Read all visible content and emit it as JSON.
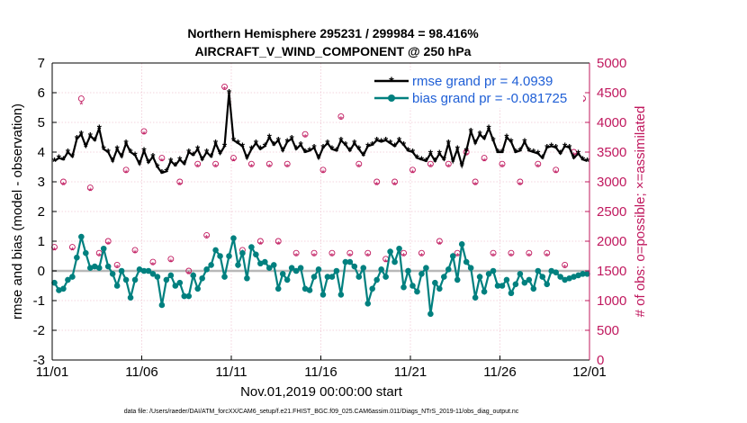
{
  "chart_data": {
    "type": "line",
    "title": "Northern Hemisphere 295231 / 299984 = 98.416%",
    "subtitle": "AIRCRAFT_V_WIND_COMPONENT @ 250 hPa",
    "xlabel": "Nov.01,2019 00:00:00 start",
    "ylabel_left": "rmse and bias (model - observation)",
    "ylabel_right": "# of obs: o=possible; ×=assimilated",
    "x_range": [
      0,
      30
    ],
    "x_tick_values": [
      0,
      5,
      10,
      15,
      20,
      25,
      30
    ],
    "x_tick_labels": [
      "11/01",
      "11/06",
      "11/11",
      "11/16",
      "11/21",
      "11/26",
      "12/01"
    ],
    "ylim_left": [
      -3,
      7
    ],
    "y_left_ticks": [
      "-3",
      "-2",
      "-1",
      "0",
      "1",
      "2",
      "3",
      "4",
      "5",
      "6",
      "7"
    ],
    "ylim_right": [
      0,
      5000
    ],
    "y_right_ticks": [
      "0",
      "500",
      "1000",
      "1500",
      "2000",
      "2500",
      "3000",
      "3500",
      "4000",
      "4500",
      "5000"
    ],
    "legend_position": "top-right",
    "footnote": "data file: /Users/raeder/DAI/ATM_forcXX/CAM6_setup/f.e21.FHIST_BGC.f09_025.CAM6assim.011/Diags_NTrS_2019-11/obs_diag_output.nc",
    "series": [
      {
        "name": "rmse grand pr = 4.0939",
        "color": "#000000",
        "x": [
          0.125,
          0.375,
          0.625,
          0.875,
          1.125,
          1.375,
          1.625,
          1.875,
          2.125,
          2.375,
          2.625,
          2.875,
          3.125,
          3.375,
          3.625,
          3.875,
          4.125,
          4.375,
          4.625,
          4.875,
          5.125,
          5.375,
          5.625,
          5.875,
          6.125,
          6.375,
          6.625,
          6.875,
          7.125,
          7.375,
          7.625,
          7.875,
          8.125,
          8.375,
          8.625,
          8.875,
          9.125,
          9.375,
          9.625,
          9.875,
          10.125,
          10.375,
          10.625,
          10.875,
          11.125,
          11.375,
          11.625,
          11.875,
          12.125,
          12.375,
          12.625,
          12.875,
          13.125,
          13.375,
          13.625,
          13.875,
          14.125,
          14.375,
          14.625,
          14.875,
          15.125,
          15.375,
          15.625,
          15.875,
          16.125,
          16.375,
          16.625,
          16.875,
          17.125,
          17.375,
          17.625,
          17.875,
          18.125,
          18.375,
          18.625,
          18.875,
          19.125,
          19.375,
          19.625,
          19.875,
          20.125,
          20.375,
          20.625,
          20.875,
          21.125,
          21.375,
          21.625,
          21.875,
          22.125,
          22.375,
          22.625,
          22.875,
          23.125,
          23.375,
          23.625,
          23.875,
          24.125,
          24.375,
          24.625,
          24.875,
          25.125,
          25.375,
          25.625,
          25.875,
          26.125,
          26.375,
          26.625,
          26.875,
          27.125,
          27.375,
          27.625,
          27.875,
          28.125,
          28.375,
          28.625,
          28.875,
          29.125,
          29.375,
          29.625,
          29.875
        ],
        "values": [
          3.7,
          3.8,
          3.75,
          4.0,
          3.85,
          4.45,
          4.6,
          4.2,
          4.55,
          4.4,
          4.8,
          4.1,
          4.0,
          3.7,
          4.1,
          3.85,
          4.3,
          4.0,
          3.9,
          3.6,
          4.05,
          3.65,
          3.85,
          3.5,
          3.3,
          3.35,
          3.7,
          3.55,
          3.75,
          3.6,
          4.0,
          3.9,
          4.1,
          3.75,
          4.0,
          3.85,
          4.3,
          3.95,
          4.2,
          6.0,
          4.4,
          4.3,
          4.2,
          3.8,
          4.1,
          4.3,
          4.1,
          4.2,
          4.5,
          4.25,
          4.4,
          4.05,
          4.35,
          4.45,
          4.1,
          4.25,
          4.0,
          4.05,
          4.15,
          3.8,
          4.15,
          4.3,
          4.1,
          4.05,
          4.4,
          4.25,
          4.05,
          4.3,
          4.1,
          3.9,
          4.2,
          4.25,
          4.4,
          4.35,
          4.4,
          4.3,
          4.2,
          4.4,
          4.25,
          4.05,
          4.0,
          3.8,
          3.75,
          3.7,
          3.95,
          3.7,
          3.95,
          3.75,
          4.3,
          3.7,
          4.1,
          3.55,
          4.05,
          4.7,
          4.3,
          4.6,
          4.45,
          4.8,
          4.4,
          4.0,
          4.0,
          4.5,
          4.35,
          4.0,
          4.05,
          4.35,
          4.05,
          4.0,
          3.95,
          3.8,
          4.15,
          4.2,
          4.15,
          3.95,
          4.2,
          4.15,
          3.8,
          3.95,
          3.75,
          3.7
        ]
      },
      {
        "name": "bias grand pr = -0.081725",
        "color": "#00807f",
        "x": [
          0.125,
          0.375,
          0.625,
          0.875,
          1.125,
          1.375,
          1.625,
          1.875,
          2.125,
          2.375,
          2.625,
          2.875,
          3.125,
          3.375,
          3.625,
          3.875,
          4.125,
          4.375,
          4.625,
          4.875,
          5.125,
          5.375,
          5.625,
          5.875,
          6.125,
          6.375,
          6.625,
          6.875,
          7.125,
          7.375,
          7.625,
          7.875,
          8.125,
          8.375,
          8.625,
          8.875,
          9.125,
          9.375,
          9.625,
          9.875,
          10.125,
          10.375,
          10.625,
          10.875,
          11.125,
          11.375,
          11.625,
          11.875,
          12.125,
          12.375,
          12.625,
          12.875,
          13.125,
          13.375,
          13.625,
          13.875,
          14.125,
          14.375,
          14.625,
          14.875,
          15.125,
          15.375,
          15.625,
          15.875,
          16.125,
          16.375,
          16.625,
          16.875,
          17.125,
          17.375,
          17.625,
          17.875,
          18.125,
          18.375,
          18.625,
          18.875,
          19.125,
          19.375,
          19.625,
          19.875,
          20.125,
          20.375,
          20.625,
          20.875,
          21.125,
          21.375,
          21.625,
          21.875,
          22.125,
          22.375,
          22.625,
          22.875,
          23.125,
          23.375,
          23.625,
          23.875,
          24.125,
          24.375,
          24.625,
          24.875,
          25.125,
          25.375,
          25.625,
          25.875,
          26.125,
          26.375,
          26.625,
          26.875,
          27.125,
          27.375,
          27.625,
          27.875,
          28.125,
          28.375,
          28.625,
          28.875,
          29.125,
          29.375,
          29.625,
          29.875
        ],
        "values": [
          -0.4,
          -0.65,
          -0.6,
          -0.3,
          -0.2,
          0.45,
          1.15,
          0.6,
          0.1,
          0.15,
          0.1,
          0.75,
          0.15,
          -0.1,
          -0.5,
          0.0,
          -0.3,
          -0.9,
          -0.3,
          0.05,
          0.0,
          0.0,
          -0.1,
          -0.2,
          -1.15,
          -0.3,
          -0.15,
          -0.5,
          -0.4,
          -0.85,
          -0.85,
          -0.15,
          -0.6,
          -0.25,
          0.05,
          0.2,
          0.7,
          0.5,
          -0.2,
          0.5,
          1.1,
          0.2,
          0.6,
          -0.25,
          0.8,
          0.55,
          0.25,
          0.3,
          0.1,
          0.2,
          -0.6,
          -0.1,
          -0.3,
          0.1,
          0.0,
          0.1,
          -0.6,
          -0.65,
          -0.2,
          0.05,
          -0.8,
          -0.2,
          -0.2,
          0.0,
          -0.8,
          0.3,
          0.3,
          0.15,
          -0.2,
          0.1,
          -1.1,
          -0.6,
          -0.3,
          0.05,
          -0.2,
          0.65,
          0.3,
          0.75,
          -0.55,
          0.0,
          -0.5,
          -0.7,
          -0.1,
          0.1,
          -1.45,
          -0.4,
          -0.6,
          -0.2,
          0.05,
          0.5,
          -0.3,
          0.9,
          0.3,
          0.1,
          -0.9,
          -0.2,
          -0.7,
          -0.1,
          0.0,
          -0.5,
          -0.5,
          -0.3,
          -0.75,
          -0.45,
          -0.1,
          -0.4,
          -0.3,
          -0.6,
          0.0,
          -0.2,
          -0.45,
          0.0,
          -0.05,
          -0.2,
          -0.3,
          -0.25,
          -0.2,
          -0.15,
          -0.1,
          -0.1
        ]
      }
    ],
    "obs_counts": {
      "color": "#c0185e",
      "possible": {
        "x": [
          0.125,
          0.625,
          1.125,
          1.625,
          2.125,
          2.625,
          3.125,
          3.625,
          4.125,
          4.625,
          5.125,
          5.625,
          6.125,
          6.625,
          7.125,
          7.625,
          8.125,
          8.625,
          9.125,
          9.625,
          10.125,
          10.625,
          11.125,
          11.625,
          12.125,
          12.625,
          13.125,
          13.625,
          14.125,
          14.625,
          15.125,
          15.625,
          16.125,
          16.625,
          17.125,
          17.625,
          18.125,
          18.625,
          19.125,
          19.625,
          20.125,
          20.625,
          21.125,
          21.625,
          22.125,
          22.625,
          23.125,
          23.625,
          24.125,
          24.625,
          25.125,
          25.625,
          26.125,
          26.625,
          27.125,
          27.625,
          28.125,
          28.625,
          29.125,
          29.625
        ],
        "values": [
          1900,
          3000,
          1900,
          4400,
          2900,
          1800,
          2000,
          1600,
          3200,
          1850,
          3850,
          1650,
          3400,
          1700,
          3000,
          1500,
          3300,
          2100,
          3300,
          4600,
          3400,
          1850,
          3300,
          2000,
          3300,
          2000,
          3300,
          1800,
          3800,
          1800,
          3200,
          1800,
          4100,
          1800,
          3300,
          1800,
          3000,
          1700,
          3000,
          1800,
          3200,
          1800,
          3300,
          2000,
          3300,
          1800,
          3500,
          3000,
          3400,
          1800,
          3300,
          1800,
          3000,
          1800,
          3300,
          1800,
          3200,
          1600,
          3500,
          4400
        ]
      },
      "assimilated": {
        "x": [
          0.125,
          0.625,
          1.125,
          1.625,
          2.125,
          2.625,
          3.125,
          3.625,
          4.125,
          4.625,
          5.125,
          5.625,
          6.125,
          6.625,
          7.125,
          7.625,
          8.125,
          8.625,
          9.125,
          9.625,
          10.125,
          10.625,
          11.125,
          11.625,
          12.125,
          12.625,
          13.125,
          13.625,
          14.125,
          14.625,
          15.125,
          15.625,
          16.125,
          16.625,
          17.125,
          17.625,
          18.125,
          18.625,
          19.125,
          19.625,
          20.125,
          20.625,
          21.125,
          21.625,
          22.125,
          22.625,
          23.125,
          23.625,
          24.125,
          24.625,
          25.125,
          25.625,
          26.125,
          26.625,
          27.125,
          27.625,
          28.125,
          28.625,
          29.125,
          29.625
        ],
        "values": [
          1850,
          2950,
          1850,
          4300,
          2850,
          1750,
          1950,
          1550,
          3150,
          1800,
          3800,
          1600,
          3350,
          1650,
          2950,
          1450,
          3250,
          2050,
          3250,
          4550,
          3350,
          1800,
          3250,
          1950,
          3250,
          1950,
          3250,
          1750,
          3750,
          1750,
          3150,
          1750,
          4050,
          1750,
          3250,
          1750,
          2950,
          1650,
          2950,
          1750,
          3150,
          1750,
          3250,
          1950,
          3250,
          1750,
          3450,
          2950,
          3350,
          1750,
          3250,
          1750,
          2950,
          1750,
          3250,
          1750,
          3150,
          1550,
          3450,
          4350
        ]
      }
    }
  }
}
